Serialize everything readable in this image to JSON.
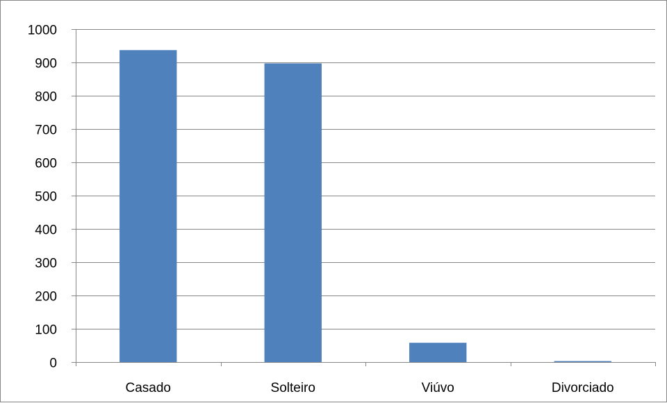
{
  "chart_data": {
    "type": "bar",
    "title": "",
    "xlabel": "",
    "ylabel": "",
    "categories": [
      "Casado",
      "Solteiro",
      "Viúvo",
      "Divorciado"
    ],
    "values": [
      937,
      897,
      58,
      3
    ],
    "ylim": [
      0,
      1000
    ],
    "yticks": [
      "0",
      "100",
      "200",
      "300",
      "400",
      "500",
      "600",
      "700",
      "800",
      "900",
      "1000"
    ],
    "grid": true,
    "legend": "none",
    "bar_color": "#4F81BD",
    "gridline_color": "#868686"
  }
}
